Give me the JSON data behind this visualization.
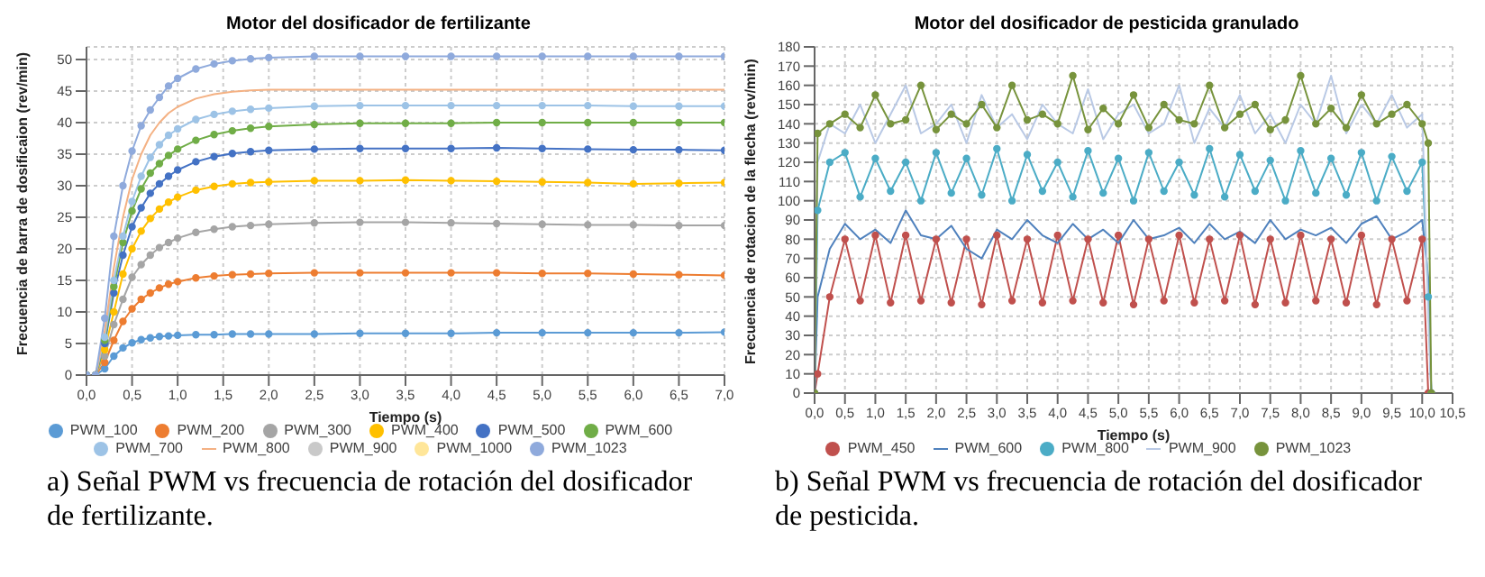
{
  "chart_data": [
    {
      "type": "line",
      "title": "Motor del dosificador de fertilizante",
      "xlabel": "Tiempo (s)",
      "ylabel": "Frecuencia de barra de dosificaion (rev/min)",
      "annotations": [
        "a) Señal PWM vs frecuencia de rotación del dosificador de fertilizante."
      ],
      "x": [
        0,
        0.1,
        0.2,
        0.3,
        0.4,
        0.5,
        0.6,
        0.7,
        0.8,
        0.9,
        1.0,
        1.2,
        1.4,
        1.6,
        1.8,
        2.0,
        2.5,
        3.0,
        3.5,
        4.0,
        4.5,
        5.0,
        5.5,
        6.0,
        6.5,
        7.0
      ],
      "xlim": [
        0,
        7
      ],
      "xticks": [
        {
          "value": 0,
          "label": "0,0"
        },
        {
          "value": 0.5,
          "label": "0,5"
        },
        {
          "value": 1,
          "label": "1,0"
        },
        {
          "value": 1.5,
          "label": "1,5"
        },
        {
          "value": 2,
          "label": "2,0"
        },
        {
          "value": 2.5,
          "label": "2,5"
        },
        {
          "value": 3,
          "label": "3,0"
        },
        {
          "value": 3.5,
          "label": "3,5"
        },
        {
          "value": 4,
          "label": "4,0"
        },
        {
          "value": 4.5,
          "label": "4,5"
        },
        {
          "value": 5,
          "label": "5,0"
        },
        {
          "value": 5.5,
          "label": "5,5"
        },
        {
          "value": 6,
          "label": "6,0"
        },
        {
          "value": 6.5,
          "label": "6,5"
        },
        {
          "value": 7,
          "label": "7,0"
        }
      ],
      "ylim": [
        0,
        52
      ],
      "yticks": [
        0,
        5,
        10,
        15,
        20,
        25,
        30,
        35,
        40,
        45,
        50
      ],
      "grid": true,
      "legend": "bottom",
      "marker": "circle",
      "line_style": "solid",
      "series": [
        {
          "name": "PWM_100",
          "color": "#5b9bd5",
          "values": [
            0,
            0,
            1,
            3,
            4.3,
            5.1,
            5.6,
            5.9,
            6.1,
            6.2,
            6.3,
            6.4,
            6.4,
            6.5,
            6.5,
            6.5,
            6.5,
            6.6,
            6.6,
            6.6,
            6.7,
            6.7,
            6.7,
            6.7,
            6.7,
            6.8
          ]
        },
        {
          "name": "PWM_200",
          "color": "#ed7d31",
          "values": [
            0,
            0,
            2,
            5.5,
            8.5,
            10.5,
            12,
            13,
            13.8,
            14.4,
            14.8,
            15.4,
            15.7,
            15.9,
            16,
            16.1,
            16.2,
            16.2,
            16.2,
            16.2,
            16.2,
            16.1,
            16.1,
            16,
            15.9,
            15.8
          ]
        },
        {
          "name": "PWM_300",
          "color": "#a5a5a5",
          "values": [
            0,
            0,
            3,
            8,
            12,
            15.5,
            17.5,
            19,
            20.2,
            21,
            21.7,
            22.6,
            23.1,
            23.5,
            23.7,
            23.9,
            24.1,
            24.2,
            24.2,
            24.1,
            24,
            23.9,
            23.8,
            23.8,
            23.7,
            23.7
          ]
        },
        {
          "name": "PWM_400",
          "color": "#ffc000",
          "values": [
            0,
            0,
            4,
            10,
            16,
            20,
            22.8,
            24.8,
            26.3,
            27.4,
            28.2,
            29.3,
            29.9,
            30.3,
            30.5,
            30.6,
            30.8,
            30.8,
            30.9,
            30.8,
            30.7,
            30.6,
            30.5,
            30.3,
            30.4,
            30.5
          ]
        },
        {
          "name": "PWM_500",
          "color": "#4472c4",
          "values": [
            0,
            0,
            5,
            13,
            19,
            23.5,
            26.5,
            28.8,
            30.3,
            31.5,
            32.5,
            33.8,
            34.6,
            35.1,
            35.4,
            35.6,
            35.8,
            35.9,
            35.9,
            35.9,
            36,
            35.9,
            35.8,
            35.7,
            35.7,
            35.6
          ]
        },
        {
          "name": "PWM_600",
          "color": "#70ad47",
          "values": [
            0,
            0,
            5.5,
            14,
            21,
            26,
            29.5,
            32,
            33.5,
            34.8,
            35.8,
            37.2,
            38.1,
            38.7,
            39.1,
            39.4,
            39.7,
            39.9,
            39.9,
            39.9,
            40,
            40,
            40,
            40,
            40,
            40
          ]
        },
        {
          "name": "PWM_700",
          "color": "#9dc3e6",
          "values": [
            0,
            0,
            6,
            15,
            22,
            27.5,
            31.5,
            34.5,
            36.5,
            38,
            39,
            40.5,
            41.3,
            41.8,
            42.1,
            42.3,
            42.6,
            42.7,
            42.7,
            42.7,
            42.7,
            42.7,
            42.7,
            42.6,
            42.6,
            42.6
          ]
        },
        {
          "name": "PWM_800",
          "color": "#f4b183",
          "marker": "none",
          "values": [
            0,
            0,
            7,
            17,
            25,
            31,
            35,
            38,
            40,
            41.5,
            42.5,
            43.8,
            44.5,
            44.9,
            45.1,
            45.2,
            45.2,
            45.2,
            45.2,
            45.2,
            45.2,
            45.2,
            45.2,
            45.2,
            45.2,
            45.2
          ]
        },
        {
          "name": "PWM_900",
          "color": "#c9c9c9",
          "values": [
            null,
            null,
            null,
            null,
            null,
            null,
            null,
            null,
            null,
            null,
            null,
            null,
            null,
            null,
            null,
            null,
            null,
            null,
            null,
            null,
            null,
            null,
            null,
            null,
            null,
            null
          ]
        },
        {
          "name": "PWM_1000",
          "color": "#ffe699",
          "values": [
            null,
            null,
            null,
            null,
            null,
            null,
            null,
            null,
            null,
            null,
            null,
            null,
            null,
            null,
            null,
            null,
            null,
            null,
            null,
            null,
            null,
            null,
            null,
            null,
            null,
            null
          ]
        },
        {
          "name": "PWM_1023",
          "color": "#8faadc",
          "values": [
            0,
            0,
            9,
            22,
            30,
            35.5,
            39.5,
            42,
            44,
            45.8,
            47,
            48.5,
            49.3,
            49.8,
            50.1,
            50.3,
            50.5,
            50.5,
            50.5,
            50.5,
            50.5,
            50.5,
            50.5,
            50.5,
            50.5,
            50.5
          ]
        }
      ]
    },
    {
      "type": "line",
      "title": "Motor del dosificador de pesticida granulado",
      "xlabel": "Tiempo (s)",
      "ylabel": "Frecuencia de rotacion de la flecha (rev/min)",
      "annotations": [
        "b) Señal PWM vs frecuencia de rotación del dosificador de pesticida."
      ],
      "x": [
        0,
        0.05,
        0.25,
        0.5,
        0.75,
        1.0,
        1.25,
        1.5,
        1.75,
        2.0,
        2.25,
        2.5,
        2.75,
        3.0,
        3.25,
        3.5,
        3.75,
        4.0,
        4.25,
        4.5,
        4.75,
        5.0,
        5.25,
        5.5,
        5.75,
        6.0,
        6.25,
        6.5,
        6.75,
        7.0,
        7.25,
        7.5,
        7.75,
        8.0,
        8.25,
        8.5,
        8.75,
        9.0,
        9.25,
        9.5,
        9.75,
        10.0,
        10.1,
        10.15
      ],
      "xlim": [
        0,
        10.5
      ],
      "xticks": [
        {
          "value": 0,
          "label": "0,0"
        },
        {
          "value": 0.5,
          "label": "0,5"
        },
        {
          "value": 1,
          "label": "1,0"
        },
        {
          "value": 1.5,
          "label": "1,5"
        },
        {
          "value": 2,
          "label": "2,0"
        },
        {
          "value": 2.5,
          "label": "2,5"
        },
        {
          "value": 3,
          "label": "3,0"
        },
        {
          "value": 3.5,
          "label": "3,5"
        },
        {
          "value": 4,
          "label": "4,0"
        },
        {
          "value": 4.5,
          "label": "4,5"
        },
        {
          "value": 5,
          "label": "5,0"
        },
        {
          "value": 5.5,
          "label": "5,5"
        },
        {
          "value": 6,
          "label": "6,0"
        },
        {
          "value": 6.5,
          "label": "6,5"
        },
        {
          "value": 7,
          "label": "7,0"
        },
        {
          "value": 7.5,
          "label": "7,5"
        },
        {
          "value": 8,
          "label": "8,0"
        },
        {
          "value": 8.5,
          "label": "8,5"
        },
        {
          "value": 9,
          "label": "9,0"
        },
        {
          "value": 9.5,
          "label": "9,5"
        },
        {
          "value": 10,
          "label": "10,0"
        },
        {
          "value": 10.5,
          "label": "10,5"
        }
      ],
      "ylim": [
        0,
        180
      ],
      "yticks": [
        0,
        10,
        20,
        30,
        40,
        50,
        60,
        70,
        80,
        90,
        100,
        110,
        120,
        130,
        140,
        150,
        160,
        170,
        180
      ],
      "grid": true,
      "legend": "bottom",
      "marker": "circle",
      "line_style": "solid",
      "series": [
        {
          "name": "PWM_450",
          "color": "#c0504d",
          "values": [
            0,
            10,
            50,
            80,
            48,
            82,
            47,
            82,
            48,
            80,
            47,
            80,
            46,
            82,
            48,
            80,
            47,
            82,
            48,
            80,
            47,
            82,
            46,
            80,
            48,
            82,
            47,
            80,
            48,
            82,
            46,
            80,
            47,
            82,
            48,
            80,
            47,
            82,
            46,
            80,
            48,
            80,
            0,
            0
          ]
        },
        {
          "name": "PWM_600",
          "color": "#4f81bd",
          "marker": "none",
          "values": [
            0,
            50,
            75,
            88,
            80,
            85,
            78,
            95,
            82,
            80,
            87,
            75,
            70,
            85,
            80,
            90,
            82,
            78,
            88,
            80,
            85,
            78,
            90,
            80,
            82,
            86,
            78,
            88,
            80,
            84,
            78,
            90,
            80,
            85,
            82,
            86,
            78,
            88,
            92,
            80,
            84,
            90,
            60,
            0
          ]
        },
        {
          "name": "PWM_800",
          "color": "#4bacc6",
          "values": [
            0,
            95,
            120,
            125,
            102,
            122,
            105,
            120,
            100,
            125,
            104,
            122,
            103,
            127,
            100,
            124,
            105,
            120,
            102,
            126,
            104,
            122,
            100,
            125,
            105,
            120,
            103,
            127,
            102,
            124,
            105,
            121,
            100,
            126,
            104,
            122,
            103,
            125,
            100,
            123,
            105,
            120,
            50,
            0
          ]
        },
        {
          "name": "PWM_900",
          "color": "#b9c9e5",
          "marker": "none",
          "values": [
            0,
            120,
            140,
            135,
            150,
            130,
            145,
            160,
            135,
            140,
            150,
            130,
            155,
            138,
            145,
            132,
            150,
            140,
            135,
            158,
            132,
            145,
            150,
            135,
            140,
            160,
            130,
            148,
            138,
            155,
            135,
            145,
            130,
            150,
            140,
            165,
            135,
            150,
            140,
            155,
            138,
            145,
            40,
            0
          ]
        },
        {
          "name": "PWM_1023",
          "color": "#77933c",
          "values": [
            0,
            135,
            140,
            145,
            138,
            155,
            140,
            142,
            160,
            137,
            145,
            140,
            150,
            138,
            160,
            142,
            145,
            140,
            165,
            137,
            148,
            140,
            155,
            138,
            150,
            142,
            140,
            160,
            138,
            145,
            150,
            137,
            142,
            165,
            140,
            148,
            138,
            155,
            140,
            145,
            150,
            140,
            130,
            0
          ]
        }
      ]
    }
  ]
}
